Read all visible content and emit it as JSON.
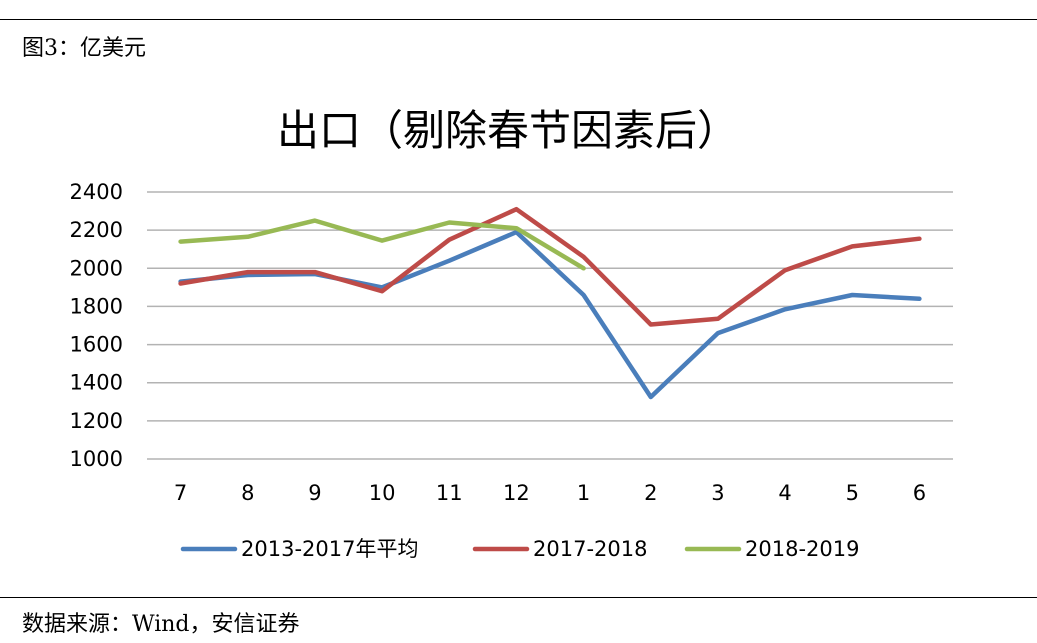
{
  "figure_label": "图3：亿美元",
  "source_note": "数据来源：Wind，安信证券",
  "chart_data": {
    "type": "line",
    "title": "出口（剔除春节因素后）",
    "xlabel": "",
    "ylabel": "",
    "categories": [
      "7",
      "8",
      "9",
      "10",
      "11",
      "12",
      "1",
      "2",
      "3",
      "4",
      "5",
      "6"
    ],
    "ylim": [
      1000,
      2400
    ],
    "yticks": [
      1000,
      1200,
      1400,
      1600,
      1800,
      2000,
      2200,
      2400
    ],
    "grid": true,
    "legend_position": "bottom",
    "series": [
      {
        "name": "2013-2017年平均",
        "color": "#4a7ebb",
        "values": [
          1930,
          1965,
          1970,
          1900,
          2040,
          2190,
          1860,
          1325,
          1660,
          1785,
          1860,
          1840
        ]
      },
      {
        "name": "2017-2018",
        "color": "#be4b48",
        "values": [
          1920,
          1980,
          1980,
          1880,
          2150,
          2310,
          2060,
          1705,
          1735,
          1990,
          2115,
          2155
        ]
      },
      {
        "name": "2018-2019",
        "color": "#98b954",
        "values": [
          2140,
          2165,
          2250,
          2145,
          2240,
          2210,
          2000,
          null,
          null,
          null,
          null,
          null
        ]
      }
    ]
  }
}
